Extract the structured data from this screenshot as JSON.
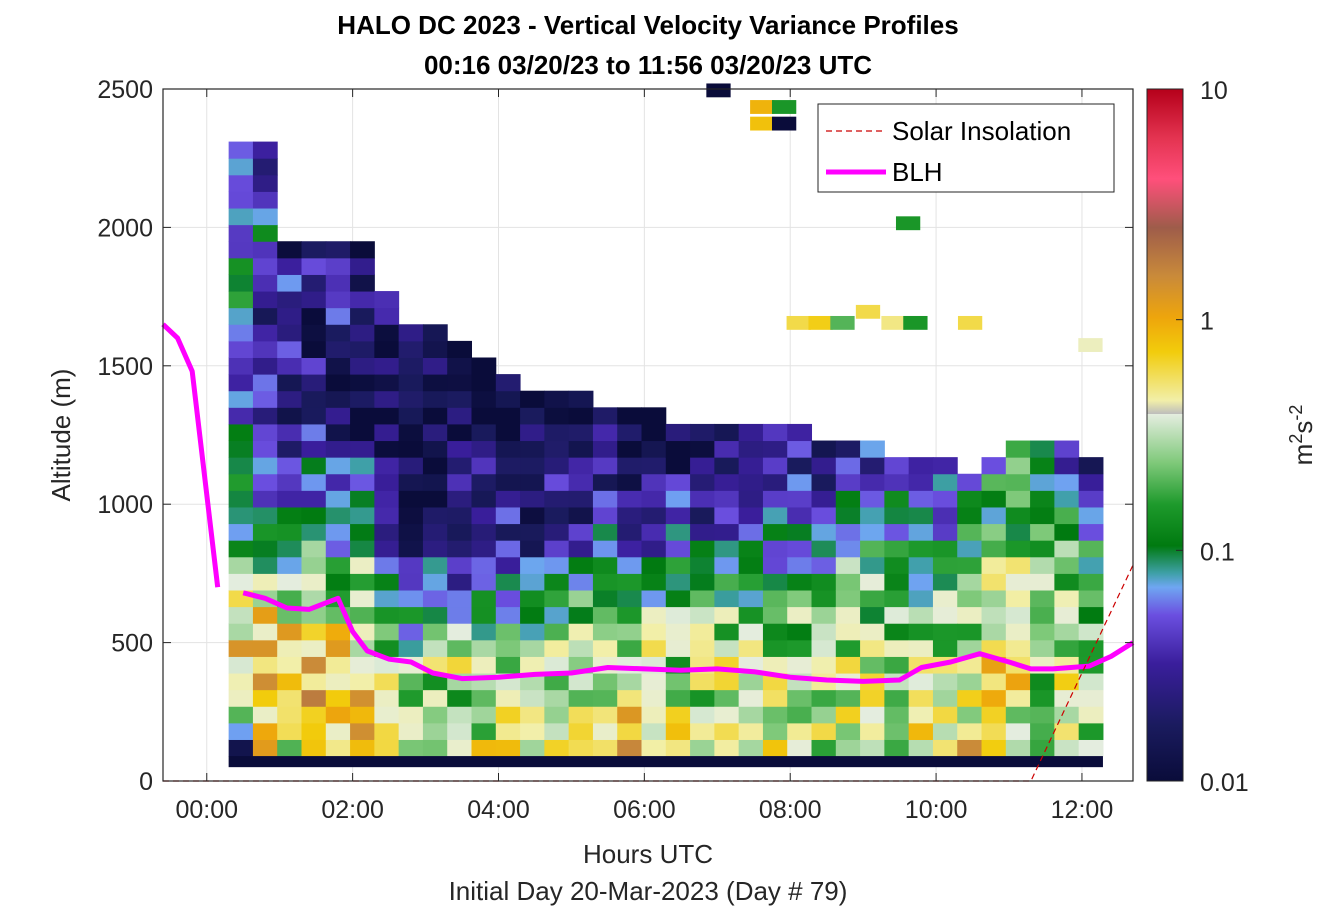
{
  "chart_data": {
    "type": "heatmap",
    "title": "HALO DC 2023 - Vertical Velocity Variance Profiles",
    "subtitle": "00:16 03/20/23 to 11:56 03/20/23  UTC",
    "xlabel": "Hours UTC",
    "xlabel2": "Initial Day 20-Mar-2023 (Day # 79)",
    "ylabel": "Altitude (m)",
    "xlim": [
      -0.6,
      12.7
    ],
    "ylim": [
      0,
      2500
    ],
    "x_ticks": [
      {
        "value": 0,
        "label": "00:00"
      },
      {
        "value": 2,
        "label": "02:00"
      },
      {
        "value": 4,
        "label": "04:00"
      },
      {
        "value": 6,
        "label": "06:00"
      },
      {
        "value": 8,
        "label": "08:00"
      },
      {
        "value": 10,
        "label": "10:00"
      },
      {
        "value": 12,
        "label": "12:00"
      }
    ],
    "y_ticks": [
      {
        "value": 0,
        "label": "0"
      },
      {
        "value": 500,
        "label": "500"
      },
      {
        "value": 1000,
        "label": "1000"
      },
      {
        "value": 1500,
        "label": "1500"
      },
      {
        "value": 2000,
        "label": "2000"
      },
      {
        "value": 2500,
        "label": "2500"
      }
    ],
    "grid": true,
    "colorbar": {
      "label_base": "m",
      "label_exp1": "2",
      "label_mid": "s",
      "label_exp2": "-2",
      "scale": "log",
      "range": [
        0.01,
        10
      ],
      "ticks": [
        {
          "value": 0.01,
          "label": "0.01"
        },
        {
          "value": 0.1,
          "label": "0.1"
        },
        {
          "value": 1,
          "label": "1"
        },
        {
          "value": 10,
          "label": "10"
        }
      ]
    },
    "legend": {
      "placement": "top-right",
      "entries": [
        {
          "label": "Solar Insolation",
          "color": "#cc0000",
          "style": "dashed"
        },
        {
          "label": "BLH",
          "color": "#ff00ff",
          "style": "solid"
        }
      ]
    },
    "series": [
      {
        "name": "BLH",
        "color": "#ff00ff",
        "segments": [
          [
            [
              -0.6,
              1650
            ],
            [
              -0.4,
              1600
            ],
            [
              -0.2,
              1480
            ],
            [
              0.15,
              700
            ]
          ],
          [
            [
              0.5,
              680
            ],
            [
              0.8,
              660
            ],
            [
              1.1,
              625
            ],
            [
              1.4,
              620
            ],
            [
              1.6,
              640
            ],
            [
              1.8,
              660
            ],
            [
              2.0,
              540
            ],
            [
              2.2,
              470
            ],
            [
              2.5,
              440
            ],
            [
              2.8,
              430
            ],
            [
              3.1,
              390
            ],
            [
              3.5,
              370
            ],
            [
              4.0,
              375
            ],
            [
              4.5,
              385
            ],
            [
              5.0,
              390
            ],
            [
              5.5,
              410
            ],
            [
              6.0,
              405
            ],
            [
              6.5,
              400
            ],
            [
              7.0,
              405
            ],
            [
              7.5,
              395
            ],
            [
              8.0,
              375
            ],
            [
              8.5,
              365
            ],
            [
              9.0,
              360
            ],
            [
              9.5,
              365
            ],
            [
              9.8,
              410
            ],
            [
              10.2,
              430
            ],
            [
              10.6,
              460
            ],
            [
              11.0,
              430
            ],
            [
              11.3,
              405
            ],
            [
              11.6,
              405
            ],
            [
              12.1,
              415
            ],
            [
              12.4,
              450
            ],
            [
              12.7,
              500
            ]
          ]
        ]
      },
      {
        "name": "Solar Insolation",
        "color": "#cc0000",
        "points": [
          [
            -0.6,
            0
          ],
          [
            11.3,
            0
          ],
          [
            12.7,
            780
          ]
        ]
      }
    ],
    "heatmap": {
      "x_start": 0.3,
      "time_bin_hours": 0.333,
      "y_start": 90,
      "height_bin_m": 60,
      "bottom_row_value": 0.01,
      "columns": [
        {
          "top": 2310,
          "levels": [
            0.03,
            0.5,
            0.7,
            0.6,
            0.35,
            0.2,
            0.1,
            0.08,
            0.07,
            0.06,
            0.05,
            0.04,
            0.1,
            0.08,
            0.06,
            0.05,
            0.04,
            0.08
          ]
        },
        {
          "top": 2310,
          "levels": [
            0.6,
            0.8,
            0.9,
            0.7,
            0.3,
            0.15,
            0.08,
            0.06,
            0.05,
            0.03,
            0.04,
            0.02,
            0.05,
            0.06,
            0.03,
            0.02
          ]
        },
        {
          "top": 1930,
          "levels": [
            0.4,
            0.7,
            0.8,
            0.9,
            0.25,
            0.12,
            0.07,
            0.05,
            0.03,
            0.02,
            0.015,
            0.03,
            0.02,
            0.04,
            0.02
          ]
        },
        {
          "top": 1930,
          "levels": [
            0.7,
            0.9,
            1.0,
            0.8,
            0.3,
            0.2,
            0.09,
            0.06,
            0.05,
            0.04,
            0.03,
            0.02,
            0.015,
            0.02,
            0.03
          ]
        },
        {
          "top": 1930,
          "levels": [
            0.6,
            0.5,
            0.8,
            0.7,
            0.4,
            0.1,
            0.08,
            0.07,
            0.03,
            0.02,
            0.015,
            0.02,
            0.03,
            0.04,
            0.02
          ]
        },
        {
          "top": 1930,
          "levels": [
            0.9,
            0.8,
            0.6,
            0.5,
            0.3,
            0.15,
            0.09,
            0.05,
            0.02,
            0.015,
            0.03,
            0.04,
            0.02,
            0.015
          ]
        },
        {
          "top": 1750,
          "levels": [
            0.5,
            0.3,
            0.25,
            0.15,
            0.08,
            0.04,
            0.03,
            0.02,
            0.015,
            0.012,
            0.02,
            0.03
          ]
        },
        {
          "top": 1630,
          "levels": [
            0.4,
            0.35,
            0.2,
            0.12,
            0.06,
            0.03,
            0.02,
            0.015,
            0.012,
            0.02,
            0.03,
            0.04
          ]
        },
        {
          "top": 1630,
          "levels": [
            0.3,
            0.2,
            0.4,
            0.1,
            0.05,
            0.025,
            0.02,
            0.015,
            0.012,
            0.02,
            0.02
          ]
        },
        {
          "top": 1570,
          "levels": [
            0.35,
            0.25,
            0.3,
            0.12,
            0.04,
            0.03,
            0.02,
            0.015,
            0.012,
            0.015
          ]
        },
        {
          "top": 1510,
          "levels": [
            0.4,
            0.3,
            0.2,
            0.1,
            0.05,
            0.03,
            0.02,
            0.015,
            0.012
          ]
        },
        {
          "top": 1450,
          "levels": [
            0.5,
            0.3,
            0.15,
            0.09,
            0.04,
            0.03,
            0.02,
            0.015,
            0.012
          ]
        },
        {
          "top": 1390,
          "levels": [
            0.45,
            0.25,
            0.2,
            0.08,
            0.03,
            0.02,
            0.015,
            0.012
          ]
        },
        {
          "top": 1390,
          "levels": [
            0.3,
            0.5,
            0.25,
            0.1,
            0.04,
            0.03,
            0.02,
            0.015
          ]
        },
        {
          "top": 1390,
          "levels": [
            0.35,
            0.4,
            0.3,
            0.12,
            0.05,
            0.02,
            0.015,
            0.012
          ]
        },
        {
          "top": 1330,
          "levels": [
            0.6,
            0.3,
            0.25,
            0.09,
            0.04,
            0.02,
            0.015
          ]
        },
        {
          "top": 1330,
          "levels": [
            0.8,
            0.5,
            0.2,
            0.1,
            0.03,
            0.02,
            0.015
          ]
        },
        {
          "top": 1330,
          "levels": [
            0.5,
            0.4,
            0.3,
            0.08,
            0.04,
            0.02,
            0.012
          ]
        },
        {
          "top": 1270,
          "levels": [
            0.4,
            0.3,
            0.25,
            0.1,
            0.03,
            0.015
          ]
        },
        {
          "top": 1270,
          "levels": [
            0.35,
            0.3,
            0.2,
            0.08,
            0.025,
            0.015
          ]
        },
        {
          "top": 1270,
          "levels": [
            0.3,
            0.4,
            0.2,
            0.1,
            0.03,
            0.015
          ]
        },
        {
          "top": 1270,
          "levels": [
            0.25,
            0.3,
            0.25,
            0.08,
            0.02,
            0.015
          ]
        },
        {
          "top": 1270,
          "levels": [
            0.6,
            0.3,
            0.2,
            0.1,
            0.04,
            0.02
          ]
        },
        {
          "top": 1270,
          "levels": [
            0.4,
            0.35,
            0.2,
            0.12,
            0.05,
            0.02
          ]
        },
        {
          "top": 1210,
          "levels": [
            0.3,
            0.3,
            0.25,
            0.09,
            0.04,
            0.02
          ]
        },
        {
          "top": 1210,
          "levels": [
            0.35,
            0.4,
            0.2,
            0.1,
            0.03
          ]
        },
        {
          "top": 1210,
          "levels": [
            0.3,
            0.3,
            0.2,
            0.08,
            0.04
          ]
        },
        {
          "top": 1150,
          "levels": [
            0.4,
            0.35,
            0.15,
            0.1,
            0.05
          ]
        },
        {
          "top": 1150,
          "levels": [
            0.5,
            0.3,
            0.15,
            0.09,
            0.03
          ]
        },
        {
          "top": 1150,
          "levels": [
            0.6,
            0.25,
            0.2,
            0.1,
            0.04
          ]
        },
        {
          "top": 1090,
          "levels": [
            0.7,
            0.4,
            0.3,
            0.15,
            0.06
          ]
        },
        {
          "top": 1150,
          "levels": [
            0.5,
            0.6,
            0.35,
            0.2,
            0.09
          ]
        },
        {
          "top": 1210,
          "levels": [
            0.4,
            0.5,
            0.3,
            0.2,
            0.1
          ]
        },
        {
          "top": 1210,
          "levels": [
            0.2,
            0.3,
            0.25,
            0.15,
            0.05
          ]
        },
        {
          "top": 1210,
          "levels": [
            0.5,
            0.4,
            0.2,
            0.12,
            0.04
          ]
        },
        {
          "top": 1150,
          "levels": [
            0.3,
            0.25,
            0.2,
            0.08,
            0.03
          ]
        }
      ],
      "scattered_top_cells": [
        {
          "x": 6.85,
          "y": 2470,
          "v": 0.01
        },
        {
          "x": 7.45,
          "y": 2410,
          "v": 0.9
        },
        {
          "x": 7.75,
          "y": 2410,
          "v": 0.15
        },
        {
          "x": 7.45,
          "y": 2350,
          "v": 0.8
        },
        {
          "x": 7.75,
          "y": 2350,
          "v": 0.01
        },
        {
          "x": 9.45,
          "y": 1990,
          "v": 0.15
        },
        {
          "x": 7.95,
          "y": 1630,
          "v": 0.6
        },
        {
          "x": 8.25,
          "y": 1630,
          "v": 0.7
        },
        {
          "x": 8.55,
          "y": 1630,
          "v": 0.2
        },
        {
          "x": 8.9,
          "y": 1670,
          "v": 0.6
        },
        {
          "x": 9.25,
          "y": 1630,
          "v": 0.5
        },
        {
          "x": 9.55,
          "y": 1630,
          "v": 0.15
        },
        {
          "x": 10.3,
          "y": 1630,
          "v": 0.6
        },
        {
          "x": 11.95,
          "y": 1550,
          "v": 0.4
        }
      ]
    }
  }
}
